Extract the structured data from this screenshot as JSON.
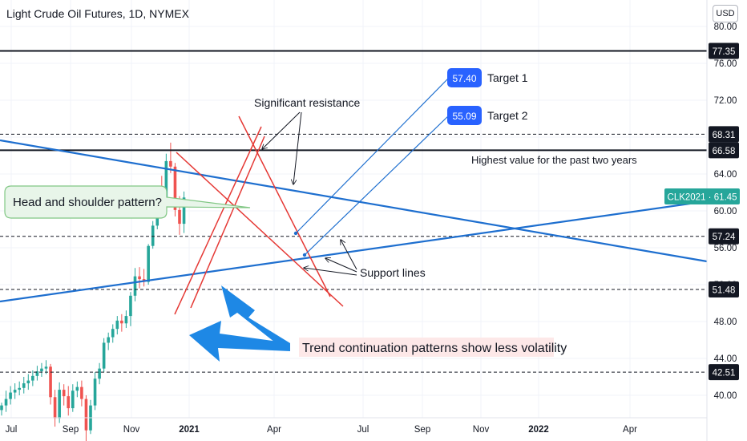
{
  "header": {
    "symbol_title": "Light Crude Oil Futures, 1D, NYMEX",
    "currency": "USD"
  },
  "chart_data": {
    "type": "candlestick",
    "title": "Light Crude Oil Futures, 1D, NYMEX",
    "ylim": [
      37.0,
      82.5
    ],
    "x_ticks": [
      "Jul",
      "Sep",
      "Nov",
      "2021",
      "Apr",
      "Jul",
      "Sep",
      "Nov",
      "2022",
      "Apr"
    ],
    "y_ticks": [
      "80.00",
      "76.00",
      "72.00",
      "68.00",
      "64.00",
      "60.00",
      "56.00",
      "52.00",
      "48.00",
      "44.00",
      "40.00"
    ],
    "horizontal_levels": [
      {
        "value": 77.35,
        "label": "77.35",
        "style": "solid"
      },
      {
        "value": 68.31,
        "label": "68.31",
        "style": "dashed"
      },
      {
        "value": 66.58,
        "label": "66.58",
        "style": "solid"
      },
      {
        "value": 57.24,
        "label": "57.24",
        "style": "dashed"
      },
      {
        "value": 51.48,
        "label": "51.48",
        "style": "dashed"
      },
      {
        "value": 42.51,
        "label": "42.51",
        "style": "dashed"
      }
    ],
    "current_price": {
      "label": "CLK2021 · 61.45",
      "value": 61.45,
      "color": "#26a69a"
    },
    "targets": [
      {
        "label": "57.40",
        "text": "Target 1"
      },
      {
        "label": "55.09",
        "text": "Target 2"
      }
    ],
    "annotations": {
      "resistance": "Significant resistance",
      "highest": "Highest value for the past two years",
      "head_shoulder": "Head and shoulder pattern?",
      "support": "Support lines",
      "trend": "Trend continuation patterns show less volatility"
    },
    "candles": [
      {
        "t": "2020-06-17",
        "o": 38.4,
        "h": 39.2,
        "l": 37.8,
        "c": 38.9
      },
      {
        "t": "2020-06-24",
        "o": 38.9,
        "h": 40.5,
        "l": 38.2,
        "c": 39.6
      },
      {
        "t": "2020-07-01",
        "o": 39.6,
        "h": 41.0,
        "l": 39.0,
        "c": 40.3
      },
      {
        "t": "2020-07-08",
        "o": 40.3,
        "h": 41.3,
        "l": 39.6,
        "c": 40.6
      },
      {
        "t": "2020-07-15",
        "o": 40.6,
        "h": 41.5,
        "l": 40.0,
        "c": 40.8
      },
      {
        "t": "2020-07-22",
        "o": 40.8,
        "h": 42.0,
        "l": 40.2,
        "c": 41.3
      },
      {
        "t": "2020-07-29",
        "o": 41.3,
        "h": 42.3,
        "l": 40.6,
        "c": 41.6
      },
      {
        "t": "2020-08-05",
        "o": 41.6,
        "h": 42.7,
        "l": 41.0,
        "c": 42.1
      },
      {
        "t": "2020-08-12",
        "o": 42.1,
        "h": 43.2,
        "l": 41.6,
        "c": 42.6
      },
      {
        "t": "2020-08-19",
        "o": 42.6,
        "h": 43.5,
        "l": 42.0,
        "c": 42.9
      },
      {
        "t": "2020-08-26",
        "o": 42.9,
        "h": 43.8,
        "l": 42.3,
        "c": 43.1
      },
      {
        "t": "2020-09-02",
        "o": 43.1,
        "h": 43.4,
        "l": 39.0,
        "c": 39.8
      },
      {
        "t": "2020-09-09",
        "o": 39.8,
        "h": 40.6,
        "l": 36.6,
        "c": 37.5
      },
      {
        "t": "2020-09-16",
        "o": 37.5,
        "h": 41.4,
        "l": 37.0,
        "c": 40.6
      },
      {
        "t": "2020-09-23",
        "o": 40.6,
        "h": 41.2,
        "l": 38.9,
        "c": 39.9
      },
      {
        "t": "2020-09-30",
        "o": 39.9,
        "h": 41.0,
        "l": 37.8,
        "c": 38.6
      },
      {
        "t": "2020-10-07",
        "o": 38.6,
        "h": 41.2,
        "l": 38.2,
        "c": 40.5
      },
      {
        "t": "2020-10-14",
        "o": 40.5,
        "h": 41.5,
        "l": 39.8,
        "c": 40.9
      },
      {
        "t": "2020-10-21",
        "o": 40.9,
        "h": 41.6,
        "l": 38.8,
        "c": 39.6
      },
      {
        "t": "2020-10-28",
        "o": 39.6,
        "h": 40.0,
        "l": 34.9,
        "c": 36.2
      },
      {
        "t": "2020-11-04",
        "o": 36.2,
        "h": 39.5,
        "l": 35.8,
        "c": 38.9
      },
      {
        "t": "2020-11-11",
        "o": 38.9,
        "h": 42.5,
        "l": 38.4,
        "c": 41.8
      },
      {
        "t": "2020-11-18",
        "o": 41.8,
        "h": 43.5,
        "l": 41.2,
        "c": 42.9
      },
      {
        "t": "2020-11-25",
        "o": 42.9,
        "h": 46.2,
        "l": 42.5,
        "c": 45.7
      },
      {
        "t": "2020-12-02",
        "o": 45.7,
        "h": 46.8,
        "l": 44.9,
        "c": 46.3
      },
      {
        "t": "2020-12-09",
        "o": 46.3,
        "h": 47.7,
        "l": 45.7,
        "c": 47.2
      },
      {
        "t": "2020-12-16",
        "o": 47.2,
        "h": 48.6,
        "l": 46.6,
        "c": 48.1
      },
      {
        "t": "2020-12-23",
        "o": 48.1,
        "h": 48.8,
        "l": 46.9,
        "c": 47.8
      },
      {
        "t": "2020-12-30",
        "o": 47.8,
        "h": 49.2,
        "l": 47.3,
        "c": 48.6
      },
      {
        "t": "2021-01-06",
        "o": 48.6,
        "h": 51.2,
        "l": 47.5,
        "c": 50.8
      },
      {
        "t": "2021-01-13",
        "o": 50.8,
        "h": 53.8,
        "l": 50.2,
        "c": 52.9
      },
      {
        "t": "2021-01-20",
        "o": 52.9,
        "h": 53.9,
        "l": 51.6,
        "c": 52.6
      },
      {
        "t": "2021-01-27",
        "o": 52.6,
        "h": 53.7,
        "l": 51.8,
        "c": 52.3
      },
      {
        "t": "2021-02-03",
        "o": 52.3,
        "h": 56.4,
        "l": 52.0,
        "c": 56.2
      },
      {
        "t": "2021-02-10",
        "o": 56.2,
        "h": 58.9,
        "l": 55.9,
        "c": 58.4
      },
      {
        "t": "2021-02-17",
        "o": 58.4,
        "h": 62.3,
        "l": 58.0,
        "c": 61.8
      },
      {
        "t": "2021-02-24",
        "o": 61.8,
        "h": 63.8,
        "l": 59.5,
        "c": 60.4
      },
      {
        "t": "2021-03-03",
        "o": 60.4,
        "h": 66.2,
        "l": 59.9,
        "c": 65.4
      },
      {
        "t": "2021-03-10",
        "o": 65.4,
        "h": 67.4,
        "l": 64.1,
        "c": 64.8
      },
      {
        "t": "2021-03-17",
        "o": 64.8,
        "h": 65.2,
        "l": 59.4,
        "c": 60.1
      },
      {
        "t": "2021-03-24",
        "o": 60.1,
        "h": 61.6,
        "l": 57.4,
        "c": 58.6
      },
      {
        "t": "2021-03-31",
        "o": 58.6,
        "h": 62.1,
        "l": 57.6,
        "c": 61.45
      }
    ]
  }
}
